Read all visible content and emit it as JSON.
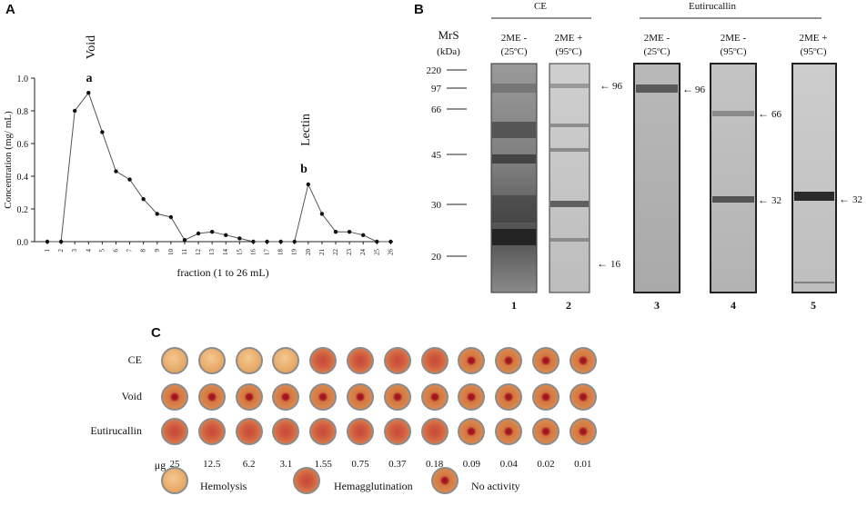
{
  "panel_a": {
    "letter": "A",
    "chart_data": {
      "type": "line",
      "x": [
        1,
        2,
        3,
        4,
        5,
        6,
        7,
        8,
        9,
        10,
        11,
        12,
        13,
        14,
        15,
        16,
        17,
        18,
        19,
        20,
        21,
        22,
        23,
        24,
        25,
        26
      ],
      "values": [
        0,
        0,
        0.8,
        0.91,
        0.67,
        0.43,
        0.38,
        0.26,
        0.17,
        0.15,
        0.01,
        0.05,
        0.06,
        0.04,
        0.02,
        0,
        0,
        0,
        0,
        0.35,
        0.17,
        0.06,
        0.06,
        0.04,
        0,
        0
      ],
      "xlabel": "fraction (1 to 26 mL)",
      "ylabel": "Concentration (mg/ mL)",
      "ylim": [
        0,
        1.0
      ],
      "yticks": [
        "0.0",
        "0.2",
        "0.4",
        "0.6",
        "0.8",
        "1.0"
      ],
      "annotations": [
        {
          "label": "Void",
          "peak": "a",
          "x": 4
        },
        {
          "label": "Lectin",
          "peak": "b",
          "x": 20
        }
      ]
    }
  },
  "panel_b": {
    "letter": "B",
    "marker_title": "MrS",
    "marker_unit": "(kDa)",
    "markers": [
      "220",
      "97",
      "66",
      "45",
      "30",
      "20"
    ],
    "group_ce": "CE",
    "group_eutirucallin": "Eutirucallin",
    "lanes": [
      {
        "number": "1",
        "cond1": "2ME -",
        "cond2": "(25ºC)",
        "arrows": []
      },
      {
        "number": "2",
        "cond1": "2ME +",
        "cond2": "(95ºC)",
        "arrows": [
          "96",
          "16"
        ]
      },
      {
        "number": "3",
        "cond1": "2ME -",
        "cond2": "(25ºC)",
        "arrows": [
          "96"
        ]
      },
      {
        "number": "4",
        "cond1": "2ME -",
        "cond2": "(95ºC)",
        "arrows": [
          "66",
          "32"
        ]
      },
      {
        "number": "5",
        "cond1": "2ME +",
        "cond2": "(95ºC)",
        "arrows": [
          "32"
        ]
      }
    ]
  },
  "panel_c": {
    "letter": "C",
    "rows": [
      {
        "label": "CE",
        "wells": [
          "hemo",
          "hemo",
          "hemo",
          "hemo",
          "agg",
          "agg",
          "agg",
          "agg",
          "none",
          "none",
          "none",
          "none"
        ]
      },
      {
        "label": "Void",
        "wells": [
          "none",
          "none",
          "none",
          "none",
          "none",
          "none",
          "none",
          "none",
          "none",
          "none",
          "none",
          "none"
        ]
      },
      {
        "label": "Eutirucallin",
        "wells": [
          "agg",
          "agg",
          "agg",
          "agg",
          "agg",
          "agg",
          "agg",
          "agg",
          "none",
          "none",
          "none",
          "none"
        ]
      }
    ],
    "dose_unit": "μg",
    "doses": [
      "25",
      "12.5",
      "6.2",
      "3.1",
      "1.55",
      "0.75",
      "0.37",
      "0.18",
      "0.09",
      "0.04",
      "0.02",
      "0.01"
    ],
    "legend": {
      "hemolysis": "Hemolysis",
      "hemagglutination": "Hemagglutination",
      "no_activity": "No activity"
    }
  }
}
